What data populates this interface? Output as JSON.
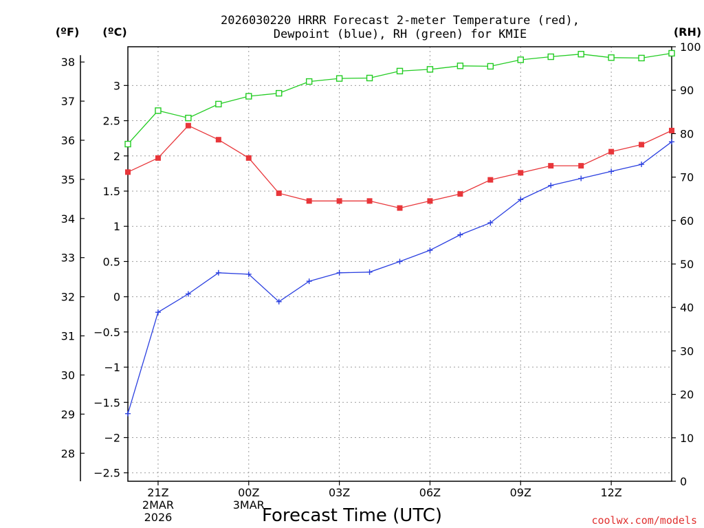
{
  "chart_data": {
    "type": "line",
    "title_line1": "2026030220 HRRR Forecast 2-meter Temperature (red),",
    "title_line2": "Dewpoint (blue), RH (green) for KMIE",
    "xlabel": "Forecast Time (UTC)",
    "unit_labels": {
      "fahrenheit": "(ºF)",
      "celsius": "(ºC)",
      "rh": "(RH)"
    },
    "x": [
      20,
      21,
      22,
      23,
      24,
      25,
      26,
      27,
      28,
      29,
      30,
      31,
      32,
      33,
      34,
      35,
      36,
      37,
      38
    ],
    "x_ticks": [
      {
        "x": 21,
        "lines": [
          "21Z",
          "2MAR",
          "2026"
        ]
      },
      {
        "x": 24,
        "lines": [
          "00Z",
          "3MAR"
        ]
      },
      {
        "x": 27,
        "lines": [
          "03Z"
        ]
      },
      {
        "x": 30,
        "lines": [
          "06Z"
        ]
      },
      {
        "x": 33,
        "lines": [
          "09Z"
        ]
      },
      {
        "x": 36,
        "lines": [
          "12Z"
        ]
      }
    ],
    "xlim": [
      20,
      38
    ],
    "celsius_ticks": [
      -2.5,
      -2,
      -1.5,
      -1,
      -0.5,
      0,
      0.5,
      1,
      1.5,
      2,
      2.5,
      3
    ],
    "celsius_tick_labels": [
      "−2.5",
      "−2",
      "−1.5",
      "−1",
      "−0.5",
      "0",
      "0.5",
      "1",
      "1.5",
      "2",
      "2.5",
      "3"
    ],
    "ylim_celsius": [
      -2.62,
      3.55
    ],
    "fahrenheit_ticks": [
      28,
      29,
      30,
      31,
      32,
      33,
      34,
      35,
      36,
      37,
      38
    ],
    "rh_ticks": [
      0,
      10,
      20,
      30,
      40,
      50,
      60,
      70,
      80,
      90,
      100
    ],
    "ylim_rh": [
      0,
      100
    ],
    "series": [
      {
        "name": "Temperature",
        "color": "#e8363a",
        "axis": "celsius",
        "marker": "filled-square",
        "values": [
          1.77,
          1.97,
          2.43,
          2.23,
          1.97,
          1.47,
          1.36,
          1.36,
          1.36,
          1.26,
          1.36,
          1.46,
          1.66,
          1.76,
          1.86,
          1.86,
          2.06,
          2.16,
          2.36
        ]
      },
      {
        "name": "Dewpoint",
        "color": "#2a3fe0",
        "axis": "celsius",
        "marker": "plus",
        "values": [
          -1.66,
          -0.22,
          0.04,
          0.34,
          0.32,
          -0.07,
          0.22,
          0.34,
          0.35,
          0.5,
          0.66,
          0.88,
          1.05,
          1.38,
          1.58,
          1.68,
          1.78,
          1.88,
          2.2
        ]
      },
      {
        "name": "RH",
        "color": "#22cc22",
        "axis": "rh",
        "marker": "open-square",
        "values": [
          77.6,
          85.3,
          83.6,
          86.8,
          88.6,
          89.3,
          92.0,
          92.7,
          92.8,
          94.4,
          94.8,
          95.6,
          95.5,
          97.0,
          97.7,
          98.3,
          97.5,
          97.4,
          98.5
        ]
      }
    ]
  },
  "credit": "coolwx.com/models"
}
